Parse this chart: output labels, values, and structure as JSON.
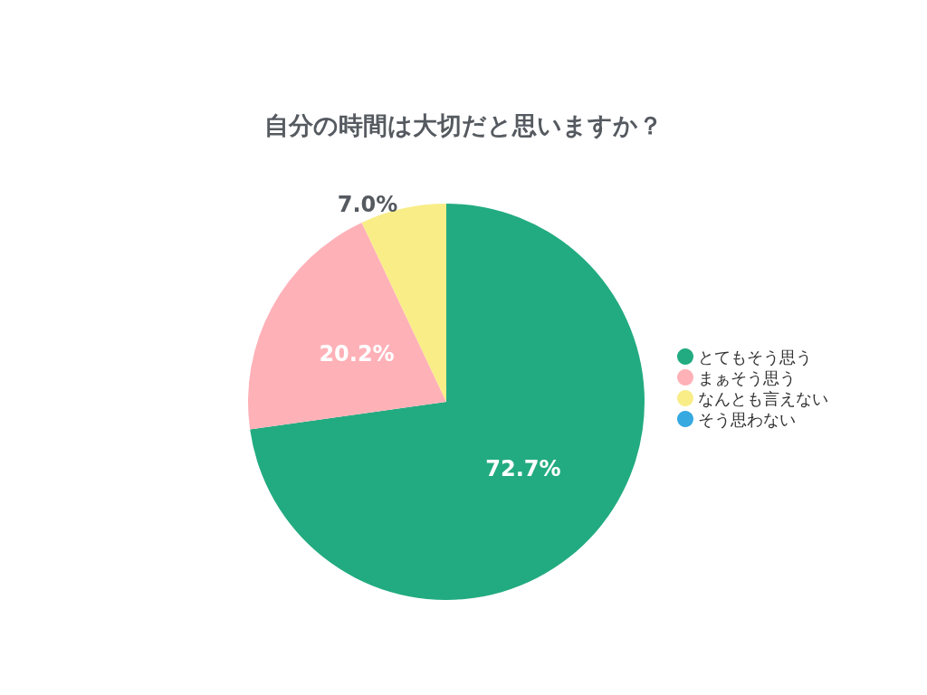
{
  "chart_data": {
    "type": "pie",
    "title": "自分の時間は大切だと思いますか？",
    "categories": [
      "とてもそう思う",
      "まぁそう思う",
      "なんとも言えない",
      "そう思わない"
    ],
    "values": [
      72.7,
      20.2,
      7.0,
      0
    ],
    "colors": [
      "#22ab80",
      "#ffb1b8",
      "#f9ed88",
      "#36a9e1"
    ],
    "value_labels": [
      "72.7%",
      "20.2%",
      "7.0%",
      null
    ],
    "legend": "right"
  }
}
